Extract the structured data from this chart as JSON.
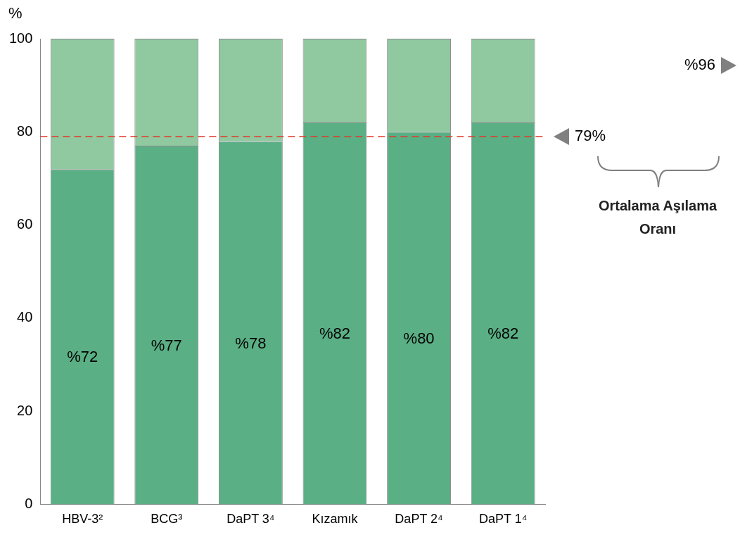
{
  "chart_data": {
    "type": "bar",
    "stacked": true,
    "ylabel": "%",
    "categories": [
      "HBV-3²",
      "BCG³",
      "DaPT 3⁴",
      "Kızamık",
      "DaPT 2⁴",
      "DaPT 1⁴"
    ],
    "series": [
      {
        "color": "#5aaf85",
        "values": [
          72,
          77,
          78,
          82,
          80,
          82
        ],
        "value_labels": [
          "%72",
          "%77",
          "%78",
          "%82",
          "%80",
          "%82"
        ]
      },
      {
        "color": "#90c8a0",
        "values": [
          28,
          23,
          22,
          18,
          20,
          18
        ]
      }
    ],
    "ylim": [
      0,
      100
    ],
    "yticks": [
      0,
      20,
      40,
      60,
      80,
      100
    ],
    "grid": false,
    "legend": false,
    "ref_lines": [
      {
        "axis": "y",
        "value": 79,
        "label": "79%",
        "color": "#e03a2a",
        "line_style": "dashed"
      }
    ],
    "annotations": [
      "%96",
      "Ortalama Aşılama Oranı"
    ]
  }
}
